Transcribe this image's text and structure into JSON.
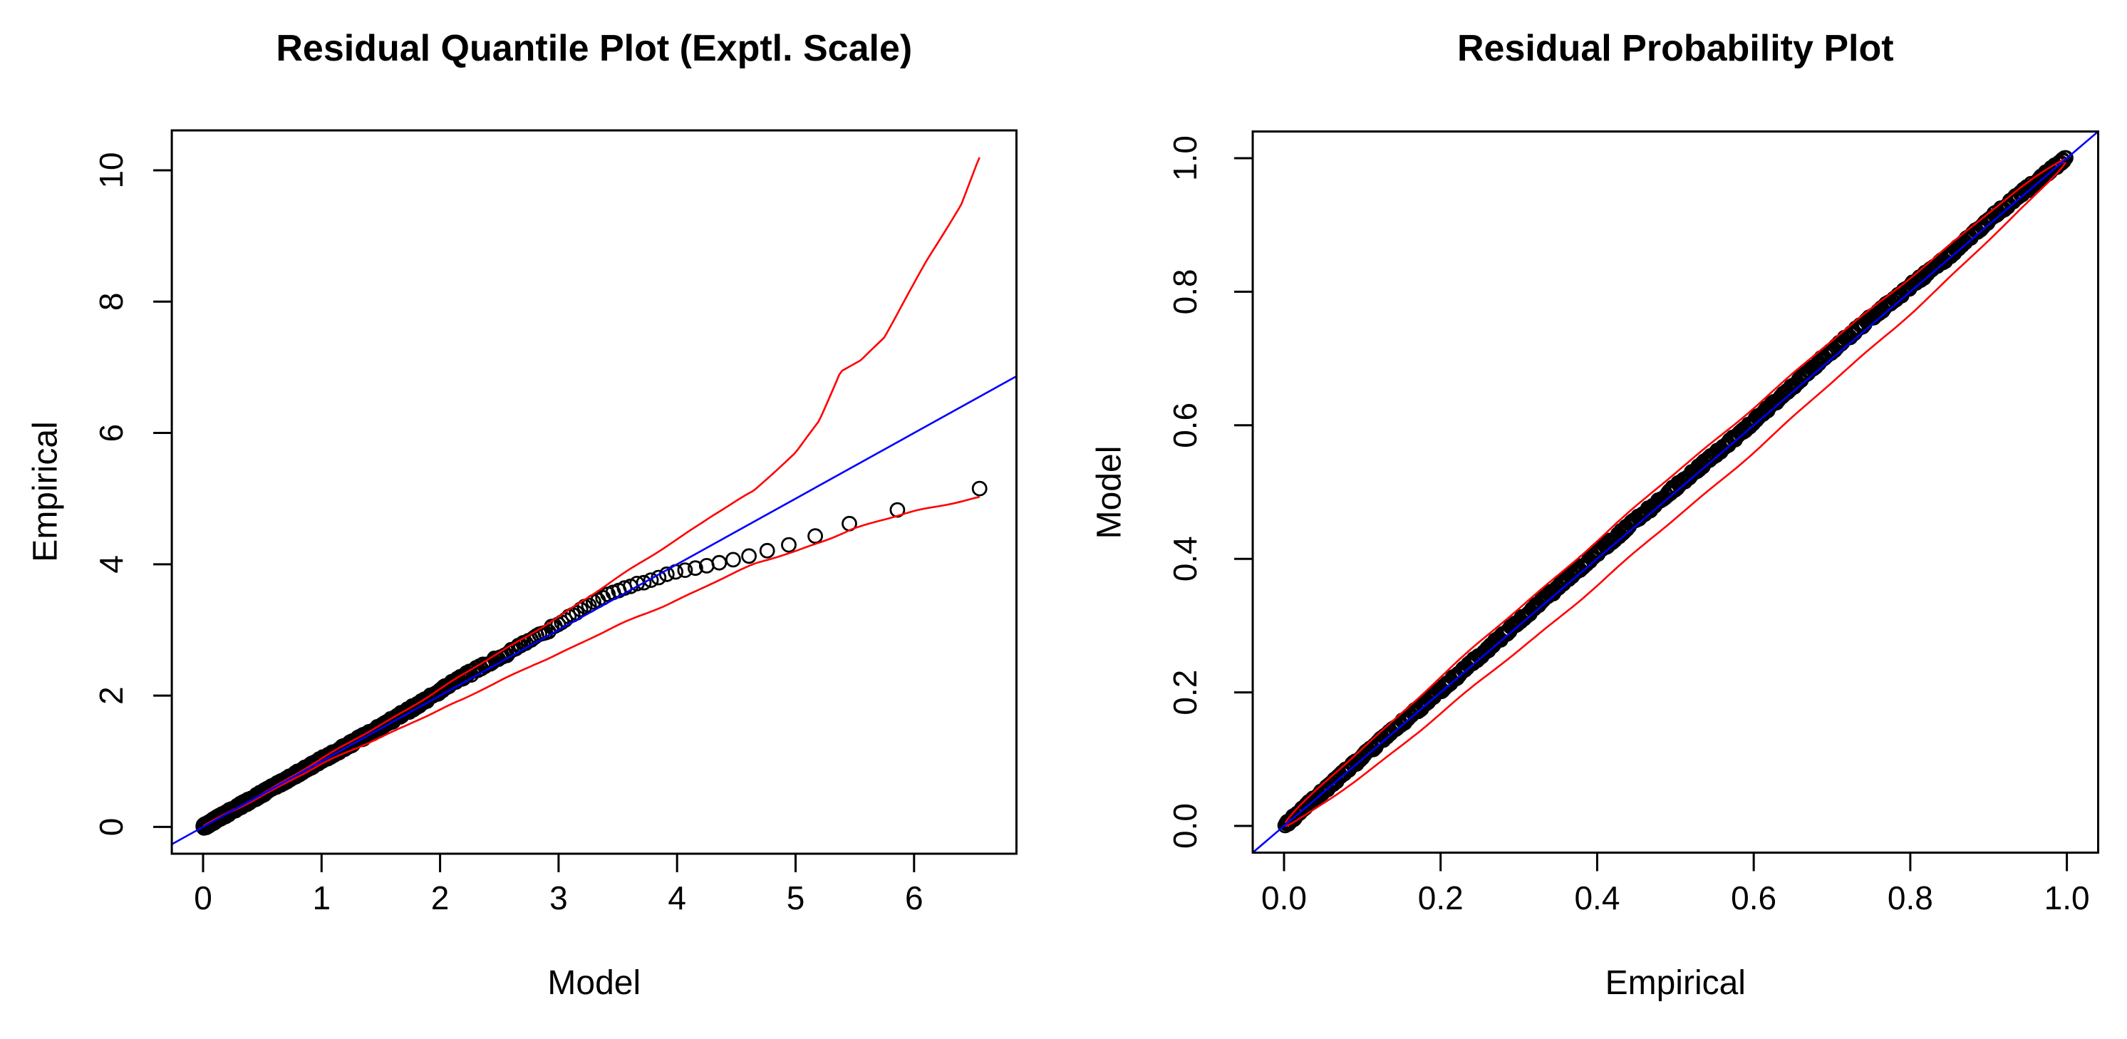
{
  "figure_title": "",
  "colors": {
    "background": "#FFFFFF",
    "points": "#000000",
    "reference_line": "#0000FF",
    "envelope_line": "#FF0000",
    "axis": "#000000"
  },
  "chart_data": [
    {
      "type": "scatter",
      "panel": "left",
      "title": "Residual Quantile Plot (Exptl. Scale)",
      "xlabel": "Model",
      "ylabel": "Empirical",
      "xlim": [
        0,
        6.6
      ],
      "ylim": [
        0,
        10.2
      ],
      "xticks": [
        0,
        1,
        2,
        3,
        4,
        5,
        6
      ],
      "xtick_labels": [
        "0",
        "1",
        "2",
        "3",
        "4",
        "5",
        "6"
      ],
      "yticks": [
        0,
        2,
        4,
        6,
        8,
        10
      ],
      "ytick_labels": [
        "0",
        "2",
        "4",
        "6",
        "8",
        "10"
      ],
      "grid": false,
      "legend": null,
      "n_points": 700,
      "point_style": "open-circle",
      "model_quantile_formula": "q_i = -ln(1 - i/(n+1)), i = 1..n",
      "reference_line": "y = x (blue, spans full plot)",
      "point_deviation_anchors": [
        [
          0,
          0
        ],
        [
          0.5,
          0.01
        ],
        [
          1.0,
          0.02
        ],
        [
          1.5,
          0.02
        ],
        [
          1.8,
          0.05
        ],
        [
          2.2,
          0.09
        ],
        [
          2.6,
          0.07
        ],
        [
          3.0,
          0.1
        ],
        [
          3.2,
          0.13
        ],
        [
          3.45,
          0.12
        ],
        [
          3.6,
          0.06
        ],
        [
          3.8,
          -0.02
        ],
        [
          4.0,
          -0.12
        ],
        [
          4.3,
          -0.3
        ],
        [
          4.6,
          -0.48
        ],
        [
          4.95,
          -0.65
        ],
        [
          5.15,
          -0.73
        ],
        [
          5.45,
          -0.83
        ],
        [
          5.93,
          -1.07
        ],
        [
          6.3,
          -1.28
        ],
        [
          6.55,
          -1.4
        ]
      ],
      "upper_envelope_anchors": [
        [
          0,
          0
        ],
        [
          0.5,
          0.515
        ],
        [
          1.0,
          1.03
        ],
        [
          1.5,
          1.56
        ],
        [
          2.0,
          2.1
        ],
        [
          2.5,
          2.65
        ],
        [
          3.0,
          3.21
        ],
        [
          3.3,
          3.55
        ],
        [
          3.9,
          4.27
        ],
        [
          4.3,
          4.75
        ],
        [
          4.65,
          5.11
        ],
        [
          5.0,
          5.7
        ],
        [
          5.2,
          6.2
        ],
        [
          5.38,
          6.95
        ],
        [
          5.55,
          7.1
        ],
        [
          5.75,
          7.45
        ],
        [
          6.1,
          8.6
        ],
        [
          6.4,
          9.5
        ],
        [
          6.55,
          10.2
        ]
      ],
      "lower_envelope_anchors": [
        [
          0,
          0
        ],
        [
          0.5,
          0.49
        ],
        [
          1.0,
          0.95
        ],
        [
          1.3,
          1.2
        ],
        [
          1.8,
          1.63
        ],
        [
          2.2,
          1.94
        ],
        [
          2.8,
          2.49
        ],
        [
          3.12,
          2.74
        ],
        [
          3.5,
          3.06
        ],
        [
          3.9,
          3.38
        ],
        [
          4.3,
          3.72
        ],
        [
          4.66,
          4.0
        ],
        [
          5.0,
          4.2
        ],
        [
          5.48,
          4.54
        ],
        [
          6.0,
          4.8
        ],
        [
          6.3,
          4.93
        ],
        [
          6.55,
          5.03
        ]
      ],
      "notable_points": [
        [
          5.93,
          4.86
        ],
        [
          6.55,
          5.15
        ]
      ]
    },
    {
      "type": "scatter",
      "panel": "right",
      "title": "Residual Probability Plot",
      "xlabel": "Empirical",
      "ylabel": "Model",
      "xlim": [
        0,
        1
      ],
      "ylim": [
        0,
        1
      ],
      "xticks": [
        0.0,
        0.2,
        0.4,
        0.6,
        0.8,
        1.0
      ],
      "xtick_labels": [
        "0.0",
        "0.2",
        "0.4",
        "0.6",
        "0.8",
        "1.0"
      ],
      "yticks": [
        0.0,
        0.2,
        0.4,
        0.6,
        0.8,
        1.0
      ],
      "ytick_labels": [
        "0.0",
        "0.2",
        "0.4",
        "0.6",
        "0.8",
        "1.0"
      ],
      "grid": false,
      "legend": null,
      "n_points": 700,
      "point_style": "open-circle",
      "probability_formula": "p_i = i/(n+1), i = 1..n",
      "reference_line": "y = x (blue, corner to corner)",
      "point_deviation_anchors": [
        [
          0,
          0
        ],
        [
          0.05,
          0.002
        ],
        [
          0.1,
          0.004
        ],
        [
          0.2,
          0.003
        ],
        [
          0.3,
          0.006
        ],
        [
          0.4,
          0.009
        ],
        [
          0.5,
          0.007
        ],
        [
          0.6,
          0.005
        ],
        [
          0.65,
          0.009
        ],
        [
          0.7,
          0.012
        ],
        [
          0.75,
          0.011
        ],
        [
          0.8,
          0.008
        ],
        [
          0.85,
          0.004
        ],
        [
          0.9,
          0.007
        ],
        [
          0.95,
          0.005
        ],
        [
          1.0,
          0.002
        ]
      ],
      "envelope_shape": "y = x +/- c*sqrt(x*(1-x))",
      "upper_envelope_coefficient": 0.056,
      "lower_envelope_coefficient": 0.08
    }
  ]
}
